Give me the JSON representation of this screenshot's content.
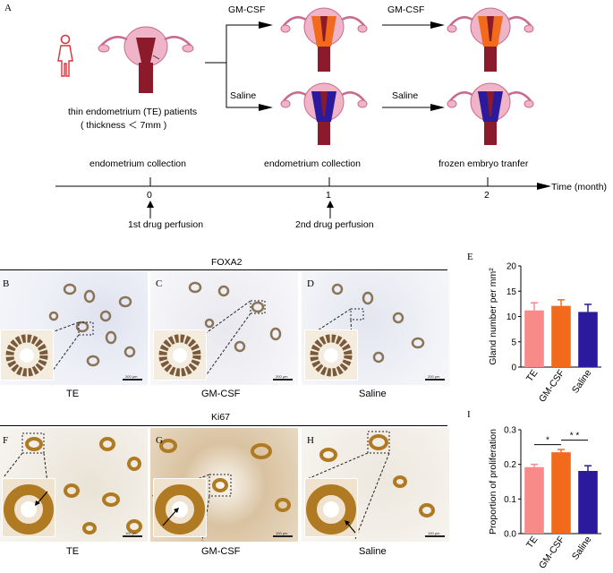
{
  "panel_a": {
    "letter": "A",
    "patient_label_line1": "thin endometrium (TE) patients",
    "patient_label_line2": "( thickness ＜ 7mm )",
    "branch_top": "GM-CSF",
    "branch_top_second": "GM-CSF",
    "branch_bottom": "Saline",
    "branch_bottom_second": "Saline",
    "timeline": {
      "events_above": [
        "endometrium collection",
        "endometrium collection",
        "frozen embryo tranfer"
      ],
      "ticks": [
        "0",
        "1",
        "2"
      ],
      "axis_label": "Time (month)",
      "events_below": [
        "1st drug perfusion",
        "2nd drug perfusion"
      ]
    },
    "colors": {
      "gmcsf": "#f26b1d",
      "saline": "#2b1a9c",
      "uterus_pink": "#f0b4c8",
      "cervix": "#8b1a2b"
    }
  },
  "foxa2": {
    "title": "FOXA2",
    "panels": [
      {
        "letter": "B",
        "label": "TE",
        "scale": "200 μm"
      },
      {
        "letter": "C",
        "label": "GM-CSF",
        "scale": "200 μm"
      },
      {
        "letter": "D",
        "label": "Saline",
        "scale": "200 μm"
      }
    ]
  },
  "ki67": {
    "title": "Ki67",
    "panels": [
      {
        "letter": "F",
        "label": "TE",
        "scale": "100 μm"
      },
      {
        "letter": "G",
        "label": "GM-CSF",
        "scale": "100 μm"
      },
      {
        "letter": "H",
        "label": "Saline",
        "scale": "100 μm"
      }
    ]
  },
  "chart_data": [
    {
      "letter": "E",
      "type": "bar",
      "categories": [
        "TE",
        "GM-CSF",
        "Saline"
      ],
      "values": [
        11.2,
        12.1,
        10.9
      ],
      "errors": [
        1.5,
        1.2,
        1.5
      ],
      "ylabel": "Gland number per mm²",
      "ylim": [
        0,
        20
      ],
      "yticks": [
        "0",
        "5",
        "10",
        "15",
        "20"
      ],
      "colors": [
        "#f98a8a",
        "#f26b1d",
        "#2b1a9c"
      ],
      "significance": []
    },
    {
      "letter": "I",
      "type": "bar",
      "categories": [
        "TE",
        "GM-CSF",
        "Saline"
      ],
      "values": [
        0.192,
        0.235,
        0.181
      ],
      "errors": [
        0.008,
        0.008,
        0.015
      ],
      "ylabel": "Proportion of proliferation",
      "ylim": [
        0,
        0.3
      ],
      "yticks": [
        "0.0",
        "0.1",
        "0.2",
        "0.3"
      ],
      "colors": [
        "#f98a8a",
        "#f26b1d",
        "#2b1a9c"
      ],
      "significance": [
        "*",
        "* *"
      ]
    }
  ]
}
